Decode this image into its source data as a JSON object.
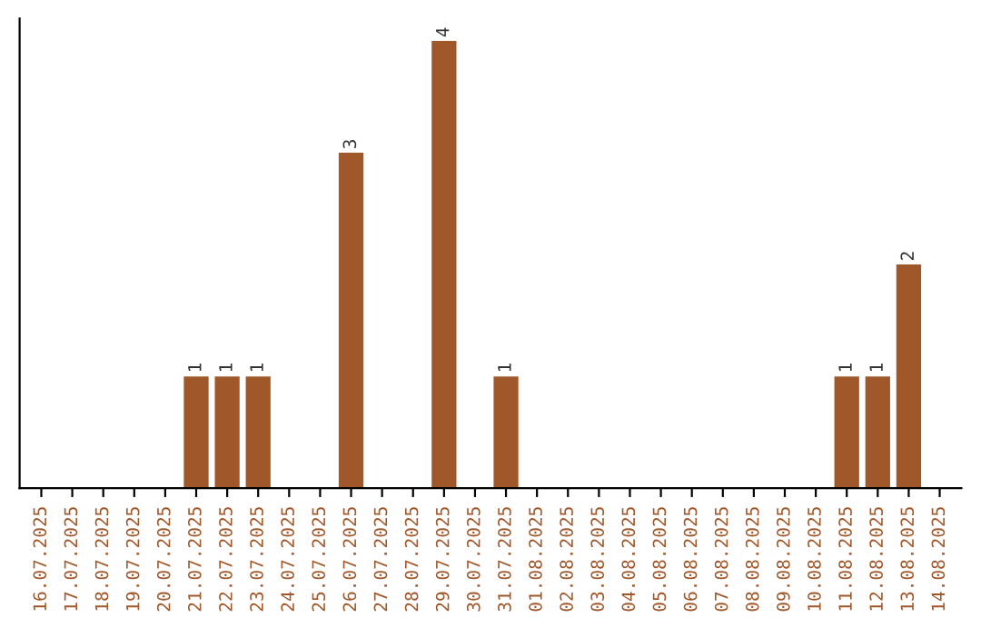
{
  "chart_data": {
    "type": "bar",
    "categories": [
      "16.07.2025",
      "17.07.2025",
      "18.07.2025",
      "19.07.2025",
      "20.07.2025",
      "21.07.2025",
      "22.07.2025",
      "23.07.2025",
      "24.07.2025",
      "25.07.2025",
      "26.07.2025",
      "27.07.2025",
      "28.07.2025",
      "29.07.2025",
      "30.07.2025",
      "31.07.2025",
      "01.08.2025",
      "02.08.2025",
      "03.08.2025",
      "04.08.2025",
      "05.08.2025",
      "06.08.2025",
      "07.08.2025",
      "08.08.2025",
      "09.08.2025",
      "10.08.2025",
      "11.08.2025",
      "12.08.2025",
      "13.08.2025",
      "14.08.2025"
    ],
    "values": [
      0,
      0,
      0,
      0,
      0,
      1,
      1,
      1,
      0,
      0,
      3,
      0,
      0,
      4,
      0,
      1,
      0,
      0,
      0,
      0,
      0,
      0,
      0,
      0,
      0,
      0,
      1,
      1,
      2,
      0
    ],
    "value_labels": [
      null,
      null,
      null,
      null,
      null,
      "1",
      "1",
      "1",
      null,
      null,
      "3",
      null,
      null,
      "4",
      null,
      "1",
      null,
      null,
      null,
      null,
      null,
      null,
      null,
      null,
      null,
      null,
      "1",
      "1",
      "2",
      null
    ],
    "color": "#a0582a",
    "grid": false,
    "legend": false
  }
}
